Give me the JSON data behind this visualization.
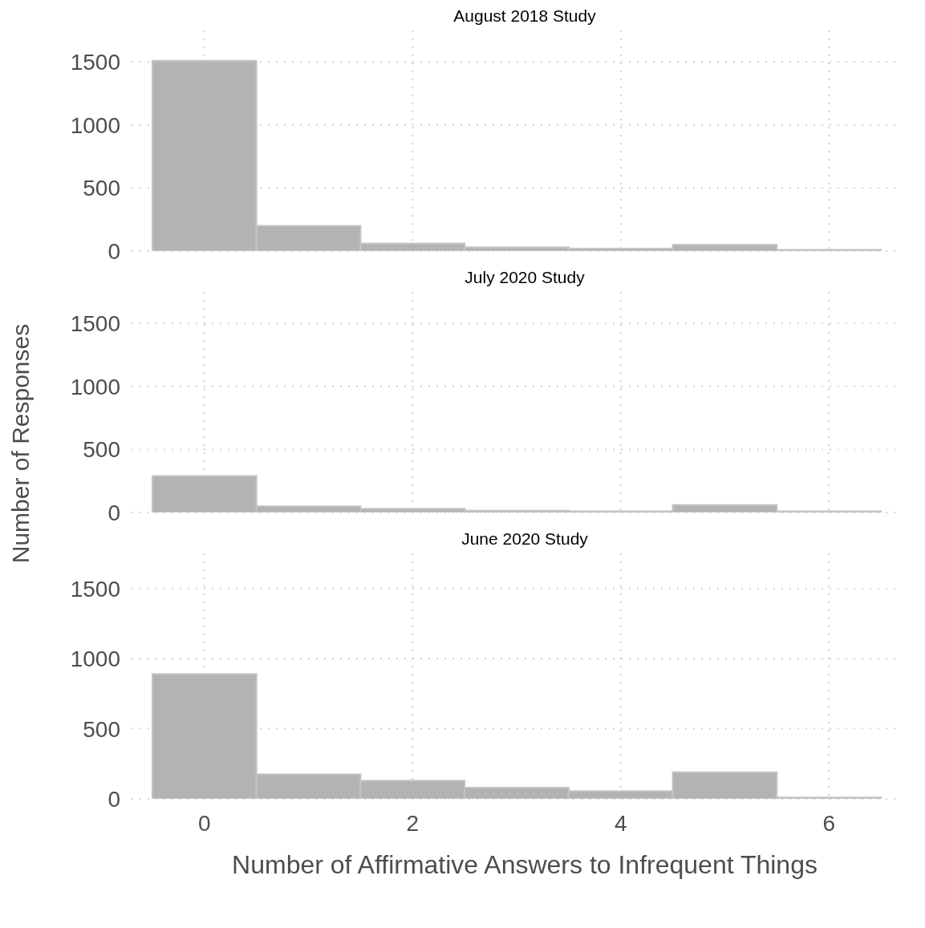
{
  "chart_data": [
    {
      "type": "histogram",
      "title": "August 2018 Study",
      "bins": [
        -0.5,
        0.5,
        1.5,
        2.5,
        3.5,
        4.5,
        5.5,
        6.5
      ],
      "values": [
        1510,
        200,
        60,
        30,
        20,
        50,
        10
      ],
      "color": "#b3b3b3",
      "xlim": [
        -0.7,
        6.7
      ],
      "xticks": [
        0,
        2,
        4,
        6
      ],
      "ylim": [
        0,
        1750
      ],
      "yticks": [
        0,
        500,
        1000,
        1500
      ],
      "grid": true,
      "tick_labels": "y"
    },
    {
      "type": "histogram",
      "title": "July 2020 Study",
      "ylabel": "Number of Responses",
      "bins": [
        -0.5,
        0.5,
        1.5,
        2.5,
        3.5,
        4.5,
        5.5,
        6.5
      ],
      "values": [
        290,
        50,
        30,
        15,
        10,
        60,
        10
      ],
      "color": "#b3b3b3",
      "xlim": [
        -0.7,
        6.7
      ],
      "xticks": [
        0,
        2,
        4,
        6
      ],
      "ylim": [
        0,
        1750
      ],
      "yticks": [
        0,
        500,
        1000,
        1500
      ],
      "grid": true,
      "tick_labels": "y"
    },
    {
      "type": "histogram",
      "title": "June 2020 Study",
      "xlabel": "Number of Affirmative Answers to Infrequent Things",
      "bins": [
        -0.5,
        0.5,
        1.5,
        2.5,
        3.5,
        4.5,
        5.5,
        6.5
      ],
      "values": [
        890,
        175,
        130,
        80,
        55,
        190,
        10
      ],
      "color": "#b3b3b3",
      "xlim": [
        -0.7,
        6.7
      ],
      "xticks": [
        0,
        2,
        4,
        6
      ],
      "ylim": [
        0,
        1750
      ],
      "yticks": [
        0,
        500,
        1000,
        1500
      ],
      "grid": true
    }
  ]
}
